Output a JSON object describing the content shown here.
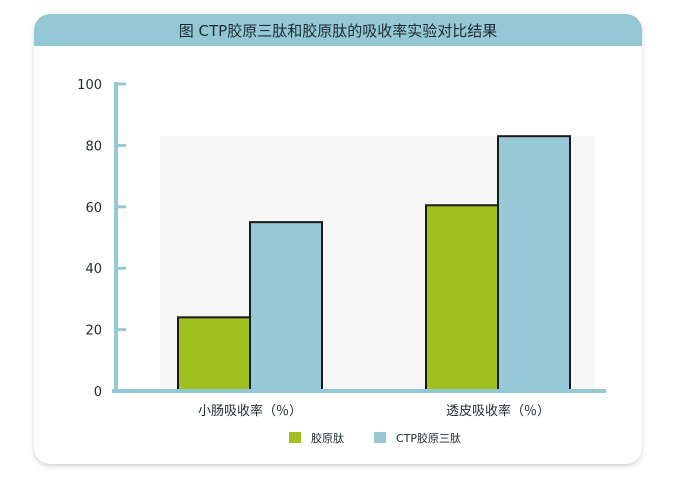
{
  "title": "图 CTP胶原三肽和胶原肽的吸收率实验对比结果",
  "colors": {
    "background": "#ffffff",
    "title_bar": "#94c8d5",
    "axis": "#94c8d5",
    "plot_bg": "#f7f7f7",
    "bar_stroke": "#1a1a1a",
    "text": "#1f2a30"
  },
  "chart_data": {
    "type": "bar",
    "categories": [
      "小肠吸收率（％）",
      "透皮吸收率（％）"
    ],
    "series": [
      {
        "name": "胶原肽",
        "values": [
          24,
          60.5
        ],
        "color": "#a0c020"
      },
      {
        "name": "CTP胶原三肽",
        "values": [
          55,
          83
        ],
        "color": "#97c8d6"
      }
    ],
    "ylim": [
      0,
      100
    ],
    "yticks": [
      0,
      20,
      40,
      60,
      80,
      100
    ],
    "xlabel": "",
    "ylabel": "",
    "grid": false,
    "legend": "bottom"
  }
}
